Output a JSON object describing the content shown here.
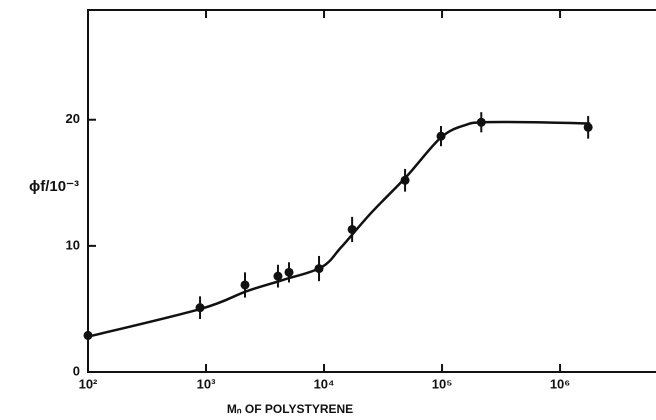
{
  "chart_data": {
    "type": "scatter",
    "x_label": "Mₙ OF POLYSTYRENE",
    "y_label": "ϕf/10⁻³",
    "log_x": true,
    "xlim": [
      100,
      6500000
    ],
    "ylim": [
      0,
      28.7
    ],
    "xticks": [
      {
        "value": 100,
        "label": "10²"
      },
      {
        "value": 1000,
        "label": "10³"
      },
      {
        "value": 10000,
        "label": "10⁴"
      },
      {
        "value": 100000,
        "label": "10⁵"
      },
      {
        "value": 1000000,
        "label": "10⁶"
      }
    ],
    "yticks": [
      0,
      10,
      20
    ],
    "series": [
      {
        "kind": "points",
        "color": "#111111",
        "x": [
          100,
          890,
          2140,
          4070,
          5050,
          9070,
          17300,
          48600,
          98000,
          215000,
          1730000
        ],
        "values": [
          2.9,
          5.1,
          6.9,
          7.6,
          7.9,
          8.2,
          11.3,
          15.2,
          18.7,
          19.8,
          19.4
        ],
        "errors": [
          0,
          0.9,
          1.0,
          0.9,
          0.8,
          1.0,
          1.0,
          0.9,
          0.8,
          0.8,
          0.9
        ]
      },
      {
        "kind": "line",
        "color": "#111111",
        "x": [
          100,
          900,
          2200,
          4500,
          9500,
          14000,
          25000,
          50000,
          98000,
          160000,
          230000,
          600000,
          1800000
        ],
        "values": [
          2.8,
          5.0,
          6.4,
          7.3,
          8.3,
          9.9,
          12.6,
          15.5,
          18.6,
          19.6,
          19.8,
          19.8,
          19.7
        ]
      }
    ]
  }
}
